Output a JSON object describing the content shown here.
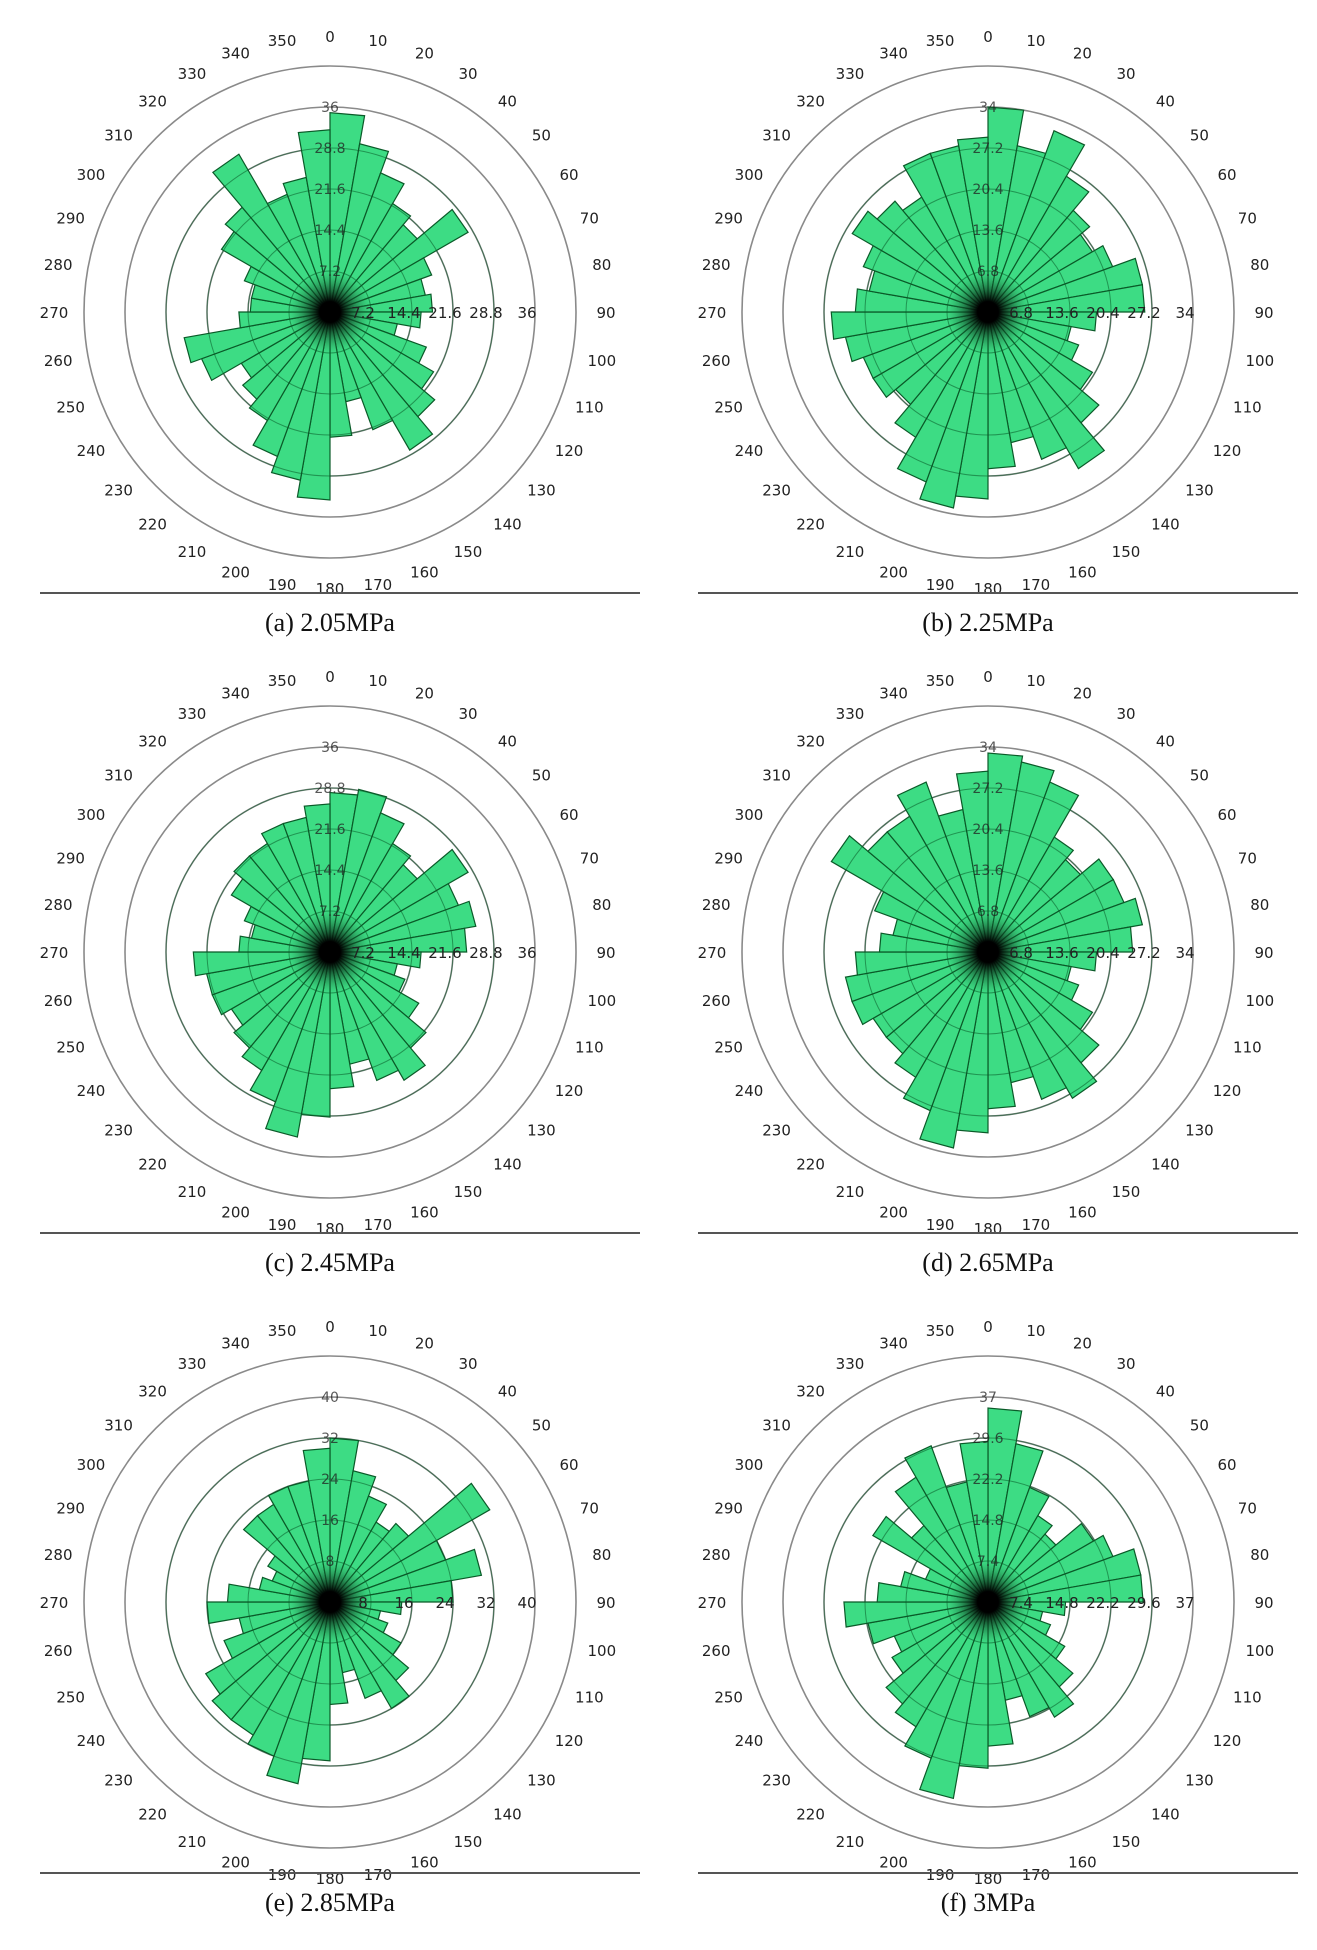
{
  "figure": {
    "panels": [
      {
        "label": "(a)",
        "pressure": "2.05MPa",
        "caption": "(a)  2.05MPa"
      },
      {
        "label": "(b)",
        "pressure": "2.25MPa",
        "caption": "(b)  2.25MPa"
      },
      {
        "label": "(c)",
        "pressure": "2.45MPa",
        "caption": "(c)  2.45MPa"
      },
      {
        "label": "(d)",
        "pressure": "2.65MPa",
        "caption": "(d)  2.65MPa"
      },
      {
        "label": "(e)",
        "pressure": "2.85MPa",
        "caption": "(e)  2.85MPa"
      },
      {
        "label": "(f)",
        "pressure": "3MPa",
        "caption": "(f)  3MPa"
      }
    ]
  },
  "colors": {
    "bar_fill": "#3ddc84",
    "bar_stroke": "#0a5a28",
    "grid_ring": "#8a8a8a",
    "text": "#222222",
    "center": "#000000"
  },
  "chart_data": [
    {
      "type": "polar-histogram",
      "title": "(a) 2.05MPa",
      "angle_ticks": [
        0,
        10,
        20,
        30,
        40,
        50,
        60,
        70,
        80,
        90,
        100,
        110,
        120,
        130,
        140,
        150,
        160,
        170,
        180,
        190,
        200,
        210,
        220,
        230,
        240,
        250,
        260,
        270,
        280,
        290,
        300,
        310,
        320,
        330,
        340,
        350
      ],
      "ring_ticks": [
        "7.2",
        "14.4",
        "21.6",
        "28.8",
        "36"
      ],
      "rmax": 36,
      "bin_width_deg": 10,
      "values": [
        35,
        30,
        26,
        22,
        20,
        28,
        19,
        17,
        18,
        16,
        12,
        18,
        21,
        24,
        28,
        22,
        16,
        22,
        33,
        30,
        27,
        22,
        20,
        18,
        24,
        26,
        16,
        14,
        14,
        16,
        22,
        24,
        32,
        22,
        24,
        32
      ]
    },
    {
      "type": "polar-histogram",
      "title": "(b) 2.25MPa",
      "angle_ticks": [
        0,
        10,
        20,
        30,
        40,
        50,
        60,
        70,
        80,
        90,
        100,
        110,
        120,
        130,
        140,
        150,
        160,
        170,
        180,
        190,
        200,
        210,
        220,
        230,
        240,
        250,
        260,
        270,
        280,
        290,
        300,
        310,
        320,
        330,
        340,
        350
      ],
      "ring_ticks": [
        "6.8",
        "13.6",
        "20.4",
        "27.2",
        "34"
      ],
      "rmax": 34,
      "bin_width_deg": 10,
      "values": [
        34,
        28,
        32,
        26,
        22,
        20,
        22,
        26,
        26,
        18,
        14,
        16,
        20,
        24,
        30,
        26,
        22,
        26,
        31,
        33,
        30,
        24,
        20,
        22,
        22,
        24,
        26,
        22,
        20,
        22,
        26,
        24,
        22,
        28,
        28,
        29
      ]
    },
    {
      "type": "polar-histogram",
      "title": "(c) 2.45MPa",
      "angle_ticks": [
        0,
        10,
        20,
        30,
        40,
        50,
        60,
        70,
        80,
        90,
        100,
        110,
        120,
        130,
        140,
        150,
        160,
        170,
        180,
        190,
        200,
        210,
        220,
        230,
        240,
        250,
        260,
        270,
        280,
        290,
        300,
        310,
        320,
        330,
        340,
        350
      ],
      "ring_ticks": [
        "7.2",
        "14.4",
        "21.6",
        "28.8",
        "36"
      ],
      "rmax": 36,
      "bin_width_deg": 10,
      "values": [
        28,
        29,
        26,
        22,
        20,
        28,
        24,
        26,
        24,
        16,
        12,
        14,
        18,
        22,
        26,
        24,
        20,
        24,
        29,
        33,
        28,
        24,
        22,
        20,
        22,
        22,
        24,
        16,
        14,
        16,
        20,
        22,
        22,
        24,
        24,
        26
      ]
    },
    {
      "type": "polar-histogram",
      "title": "(d) 2.65MPa",
      "angle_ticks": [
        0,
        10,
        20,
        30,
        40,
        50,
        60,
        70,
        80,
        90,
        100,
        110,
        120,
        130,
        140,
        150,
        160,
        170,
        180,
        190,
        200,
        210,
        220,
        230,
        240,
        250,
        260,
        270,
        280,
        290,
        300,
        310,
        320,
        330,
        340,
        350
      ],
      "ring_ticks": [
        "6.8",
        "13.6",
        "20.4",
        "27.2",
        "34"
      ],
      "rmax": 34,
      "bin_width_deg": 10,
      "values": [
        33,
        32,
        30,
        22,
        20,
        24,
        24,
        26,
        24,
        18,
        14,
        16,
        20,
        24,
        28,
        26,
        22,
        26,
        30,
        33,
        28,
        24,
        22,
        22,
        24,
        24,
        22,
        18,
        16,
        20,
        30,
        26,
        26,
        30,
        24,
        30
      ]
    },
    {
      "type": "polar-histogram",
      "title": "(e) 2.85MPa",
      "angle_ticks": [
        0,
        10,
        20,
        30,
        40,
        50,
        60,
        70,
        80,
        90,
        100,
        110,
        120,
        130,
        140,
        150,
        160,
        170,
        180,
        190,
        200,
        210,
        220,
        230,
        240,
        250,
        260,
        270,
        280,
        290,
        300,
        310,
        320,
        330,
        340,
        350
      ],
      "ring_ticks": [
        "8",
        "16",
        "24",
        "32",
        "40"
      ],
      "rmax": 40,
      "bin_width_deg": 10,
      "values": [
        32,
        26,
        22,
        18,
        20,
        36,
        24,
        30,
        24,
        14,
        10,
        12,
        16,
        20,
        24,
        20,
        14,
        20,
        31,
        36,
        32,
        30,
        30,
        28,
        22,
        18,
        24,
        20,
        14,
        12,
        14,
        22,
        22,
        24,
        24,
        30
      ]
    },
    {
      "type": "polar-histogram",
      "title": "(f) 3MPa",
      "angle_ticks": [
        0,
        10,
        20,
        30,
        40,
        50,
        60,
        70,
        80,
        90,
        100,
        110,
        120,
        130,
        140,
        150,
        160,
        170,
        180,
        190,
        200,
        210,
        220,
        230,
        240,
        250,
        260,
        270,
        280,
        290,
        300,
        310,
        320,
        330,
        340,
        350
      ],
      "ring_ticks": [
        "7.4",
        "14.8",
        "22.2",
        "29.6",
        "37"
      ],
      "rmax": 37,
      "bin_width_deg": 10,
      "values": [
        35,
        29,
        22,
        18,
        16,
        22,
        24,
        28,
        28,
        14,
        10,
        12,
        16,
        20,
        24,
        22,
        18,
        26,
        30,
        36,
        30,
        26,
        24,
        20,
        18,
        22,
        26,
        20,
        16,
        12,
        24,
        18,
        26,
        30,
        22,
        29
      ]
    }
  ]
}
